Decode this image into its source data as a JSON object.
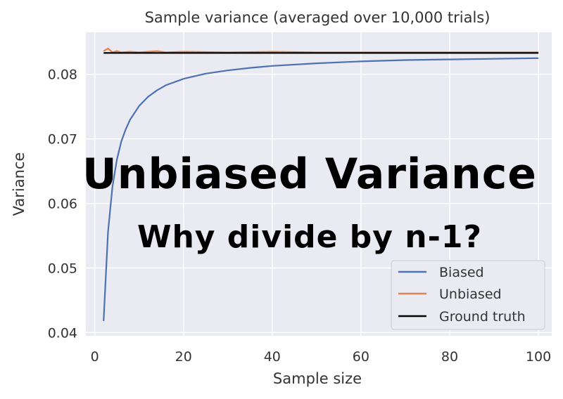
{
  "overlay": {
    "headline": "Unbiased Variance",
    "subheadline": "Why divide by n-1?"
  },
  "chart_data": {
    "type": "line",
    "title": "Sample variance (averaged over 10,000 trials)",
    "xlabel": "Sample size",
    "ylabel": "Variance",
    "xlim": [
      -2,
      103
    ],
    "ylim": [
      0.0395,
      0.0865
    ],
    "xticks": [
      0,
      20,
      40,
      60,
      80,
      100
    ],
    "yticks": [
      0.04,
      0.05,
      0.06,
      0.07,
      0.08
    ],
    "xtick_labels": [
      "0",
      "20",
      "40",
      "60",
      "80",
      "100"
    ],
    "ytick_labels": [
      "0.04",
      "0.05",
      "0.06",
      "0.07",
      "0.08"
    ],
    "grid": true,
    "legend_position": "bottom-right",
    "series": [
      {
        "name": "Biased",
        "color": "#4c72b0",
        "x": [
          2,
          3,
          4,
          5,
          6,
          7,
          8,
          10,
          12,
          14,
          16,
          20,
          25,
          30,
          35,
          40,
          50,
          60,
          70,
          80,
          90,
          100
        ],
        "y": [
          0.0418,
          0.0556,
          0.0626,
          0.0668,
          0.0696,
          0.0715,
          0.073,
          0.0751,
          0.0765,
          0.0775,
          0.0783,
          0.0793,
          0.0801,
          0.0806,
          0.081,
          0.0813,
          0.0817,
          0.082,
          0.0822,
          0.0823,
          0.0824,
          0.0825
        ]
      },
      {
        "name": "Unbiased",
        "color": "#dd8452",
        "x": [
          2,
          3,
          4,
          5,
          6,
          8,
          10,
          12,
          14,
          16,
          20,
          30,
          40,
          50,
          60,
          70,
          80,
          90,
          100
        ],
        "y": [
          0.0836,
          0.084,
          0.0834,
          0.0836,
          0.0834,
          0.0835,
          0.0834,
          0.0835,
          0.0836,
          0.0834,
          0.0835,
          0.0834,
          0.0835,
          0.0834,
          0.0834,
          0.0834,
          0.0834,
          0.0834,
          0.0834
        ]
      },
      {
        "name": "Ground truth",
        "color": "#000000",
        "x": [
          2,
          100
        ],
        "y": [
          0.0833,
          0.0833
        ]
      }
    ]
  }
}
